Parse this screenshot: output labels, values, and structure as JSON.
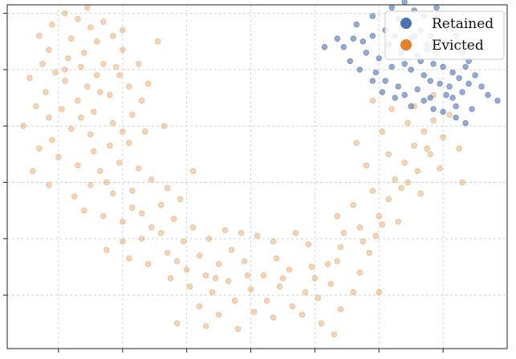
{
  "chart_data": {
    "type": "scatter",
    "title": "",
    "xlabel": "",
    "ylabel": "",
    "xlim": [
      -0.2,
      7.6
    ],
    "ylim": [
      -0.95,
      5.15
    ],
    "x_ticks": [
      0.6,
      1.6,
      2.6,
      3.6,
      4.6,
      5.6,
      6.6
    ],
    "y_ticks": [
      0,
      1,
      2,
      3,
      4,
      5
    ],
    "grid": true,
    "legend_position": "top-right",
    "series": [
      {
        "name": "Retained",
        "color": "#4c72b0",
        "points": [
          [
            6.1,
            4.55
          ],
          [
            6.25,
            4.7
          ],
          [
            6.4,
            4.6
          ],
          [
            6.55,
            4.8
          ],
          [
            6.35,
            4.35
          ],
          [
            6.2,
            4.25
          ],
          [
            6.5,
            4.3
          ],
          [
            6.7,
            4.45
          ],
          [
            6.45,
            4.1
          ],
          [
            6.6,
            4.05
          ],
          [
            6.75,
            3.95
          ],
          [
            6.3,
            3.9
          ],
          [
            6.55,
            3.75
          ],
          [
            6.7,
            3.7
          ],
          [
            6.85,
            3.85
          ],
          [
            6.1,
            4.0
          ],
          [
            5.95,
            4.3
          ],
          [
            5.75,
            4.45
          ],
          [
            5.6,
            4.2
          ],
          [
            5.85,
            4.6
          ],
          [
            6.05,
            4.85
          ],
          [
            6.3,
            4.95
          ],
          [
            6.5,
            5.1
          ],
          [
            6.15,
            5.05
          ],
          [
            5.9,
            4.9
          ],
          [
            5.7,
            4.7
          ],
          [
            5.5,
            4.6
          ],
          [
            5.35,
            4.5
          ],
          [
            5.2,
            4.55
          ],
          [
            5.4,
            4.3
          ],
          [
            5.55,
            3.95
          ],
          [
            5.7,
            3.8
          ],
          [
            5.9,
            3.7
          ],
          [
            6.0,
            3.55
          ],
          [
            6.2,
            3.65
          ],
          [
            6.4,
            3.5
          ],
          [
            6.65,
            3.55
          ],
          [
            6.9,
            3.6
          ],
          [
            7.0,
            3.75
          ],
          [
            7.1,
            3.9
          ],
          [
            7.0,
            4.15
          ],
          [
            6.9,
            4.3
          ],
          [
            6.8,
            4.6
          ],
          [
            6.65,
            4.75
          ],
          [
            6.95,
            4.05
          ],
          [
            7.2,
            3.7
          ],
          [
            7.3,
            3.55
          ],
          [
            6.8,
            3.35
          ],
          [
            6.6,
            3.25
          ],
          [
            6.45,
            3.3
          ],
          [
            6.3,
            3.45
          ],
          [
            6.1,
            3.35
          ],
          [
            5.85,
            3.5
          ],
          [
            5.65,
            3.6
          ],
          [
            5.5,
            3.8
          ],
          [
            5.3,
            4.0
          ],
          [
            5.15,
            4.15
          ],
          [
            5.05,
            4.4
          ],
          [
            4.95,
            4.55
          ],
          [
            4.75,
            4.4
          ],
          [
            5.25,
            4.8
          ],
          [
            5.5,
            4.95
          ],
          [
            5.8,
            5.1
          ],
          [
            6.0,
            5.2
          ],
          [
            6.35,
            4.45
          ],
          [
            6.15,
            4.6
          ],
          [
            6.0,
            4.1
          ],
          [
            5.8,
            4.05
          ],
          [
            6.4,
            3.8
          ],
          [
            6.55,
            4.5
          ],
          [
            6.25,
            4.15
          ],
          [
            6.45,
            4.4
          ],
          [
            6.8,
            3.15
          ],
          [
            7.05,
            3.3
          ],
          [
            6.95,
            3.05
          ],
          [
            7.45,
            3.45
          ],
          [
            7.0,
            4.45
          ],
          [
            6.75,
            3.5
          ]
        ]
      },
      {
        "name": "Evicted",
        "color": "#e0812e",
        "points": [
          [
            0.3,
            4.6
          ],
          [
            0.5,
            4.8
          ],
          [
            0.7,
            5.0
          ],
          [
            0.9,
            4.9
          ],
          [
            1.1,
            4.75
          ],
          [
            1.3,
            4.85
          ],
          [
            1.45,
            4.6
          ],
          [
            1.6,
            4.35
          ],
          [
            1.2,
            4.5
          ],
          [
            0.8,
            4.55
          ],
          [
            0.45,
            4.35
          ],
          [
            0.35,
            4.1
          ],
          [
            0.55,
            3.95
          ],
          [
            0.75,
            4.2
          ],
          [
            1.0,
            4.3
          ],
          [
            1.3,
            4.1
          ],
          [
            1.55,
            3.9
          ],
          [
            1.7,
            3.7
          ],
          [
            1.4,
            3.55
          ],
          [
            1.05,
            3.7
          ],
          [
            0.7,
            3.8
          ],
          [
            0.4,
            3.6
          ],
          [
            0.25,
            3.35
          ],
          [
            0.45,
            3.15
          ],
          [
            0.65,
            3.3
          ],
          [
            0.9,
            3.45
          ],
          [
            1.15,
            3.25
          ],
          [
            1.45,
            3.05
          ],
          [
            1.75,
            3.2
          ],
          [
            1.9,
            3.45
          ],
          [
            1.95,
            2.9
          ],
          [
            1.7,
            2.7
          ],
          [
            1.4,
            2.65
          ],
          [
            1.1,
            2.85
          ],
          [
            0.8,
            2.95
          ],
          [
            0.5,
            2.75
          ],
          [
            0.3,
            2.6
          ],
          [
            0.6,
            2.45
          ],
          [
            0.9,
            2.3
          ],
          [
            1.25,
            2.2
          ],
          [
            1.55,
            2.35
          ],
          [
            1.85,
            2.25
          ],
          [
            2.05,
            2.05
          ],
          [
            1.75,
            1.85
          ],
          [
            1.45,
            1.8
          ],
          [
            1.1,
            1.95
          ],
          [
            0.85,
            1.75
          ],
          [
            1.0,
            1.5
          ],
          [
            1.3,
            1.4
          ],
          [
            1.6,
            1.3
          ],
          [
            1.9,
            1.45
          ],
          [
            2.2,
            1.6
          ],
          [
            2.4,
            1.35
          ],
          [
            2.2,
            1.1
          ],
          [
            1.9,
            1.0
          ],
          [
            1.6,
            0.95
          ],
          [
            1.35,
            0.8
          ],
          [
            1.7,
            0.65
          ],
          [
            2.0,
            0.55
          ],
          [
            2.3,
            0.75
          ],
          [
            2.55,
            0.95
          ],
          [
            2.8,
            0.7
          ],
          [
            2.6,
            0.45
          ],
          [
            2.35,
            0.3
          ],
          [
            2.65,
            0.15
          ],
          [
            2.9,
            0.35
          ],
          [
            3.1,
            0.55
          ],
          [
            3.3,
            0.8
          ],
          [
            3.5,
            0.6
          ],
          [
            3.25,
            0.25
          ],
          [
            3.0,
            0.05
          ],
          [
            2.8,
            -0.2
          ],
          [
            3.1,
            -0.35
          ],
          [
            3.35,
            -0.1
          ],
          [
            3.6,
            0.1
          ],
          [
            3.8,
            0.35
          ],
          [
            4.0,
            0.65
          ],
          [
            4.2,
            0.45
          ],
          [
            4.05,
            0.15
          ],
          [
            3.85,
            -0.1
          ],
          [
            3.65,
            -0.3
          ],
          [
            3.95,
            -0.4
          ],
          [
            4.25,
            -0.2
          ],
          [
            4.45,
            0.05
          ],
          [
            4.6,
            0.3
          ],
          [
            4.8,
            0.55
          ],
          [
            5.0,
            0.85
          ],
          [
            4.85,
            0.2
          ],
          [
            4.65,
            -0.05
          ],
          [
            4.4,
            -0.35
          ],
          [
            4.7,
            -0.5
          ],
          [
            5.0,
            -0.25
          ],
          [
            5.2,
            0.05
          ],
          [
            5.3,
            0.4
          ],
          [
            5.45,
            0.75
          ],
          [
            5.55,
            1.05
          ],
          [
            5.3,
            1.2
          ],
          [
            5.05,
            1.1
          ],
          [
            5.6,
            1.4
          ],
          [
            5.75,
            1.7
          ],
          [
            5.5,
            1.85
          ],
          [
            5.85,
            2.05
          ],
          [
            6.0,
            2.35
          ],
          [
            5.75,
            2.5
          ],
          [
            6.15,
            2.65
          ],
          [
            6.3,
            2.9
          ],
          [
            6.05,
            3.05
          ],
          [
            6.45,
            3.1
          ],
          [
            6.6,
            2.8
          ],
          [
            6.4,
            2.5
          ],
          [
            6.2,
            2.2
          ],
          [
            5.95,
            1.9
          ],
          [
            6.7,
            3.2
          ],
          [
            5.65,
            2.9
          ],
          [
            5.4,
            2.3
          ],
          [
            5.2,
            1.6
          ],
          [
            4.95,
            1.4
          ],
          [
            4.5,
            0.9
          ],
          [
            4.3,
            1.1
          ],
          [
            3.95,
            0.95
          ],
          [
            3.7,
            1.05
          ],
          [
            3.45,
            1.1
          ],
          [
            3.2,
            1.15
          ],
          [
            2.95,
            1.0
          ],
          [
            2.7,
            1.2
          ],
          [
            2.5,
            1.7
          ],
          [
            2.7,
            2.2
          ],
          [
            1.2,
            3.9
          ],
          [
            0.95,
            4.05
          ],
          [
            1.6,
            4.7
          ],
          [
            1.85,
            4.1
          ],
          [
            2.3,
            1.9
          ],
          [
            0.15,
            3.85
          ],
          [
            0.05,
            3.0
          ],
          [
            0.2,
            2.2
          ],
          [
            0.45,
            1.95
          ],
          [
            2.9,
            -0.55
          ],
          [
            3.4,
            -0.6
          ],
          [
            2.45,
            -0.5
          ],
          [
            4.9,
            -0.7
          ],
          [
            5.6,
            0.05
          ],
          [
            5.9,
            1.3
          ],
          [
            6.25,
            1.8
          ],
          [
            6.55,
            2.25
          ],
          [
            6.85,
            2.6
          ],
          [
            6.9,
            2.0
          ],
          [
            5.25,
            2.7
          ],
          [
            5.5,
            3.45
          ],
          [
            5.8,
            3.3
          ],
          [
            6.15,
            3.35
          ],
          [
            6.45,
            3.55
          ],
          [
            2.25,
            3.0
          ],
          [
            2.0,
            3.75
          ],
          [
            2.15,
            4.5
          ],
          [
            1.05,
            5.1
          ],
          [
            0.7,
            4.0
          ],
          [
            1.5,
            4.05
          ],
          [
            1.25,
            3.6
          ],
          [
            0.95,
            3.15
          ],
          [
            1.6,
            2.9
          ],
          [
            1.15,
            2.55
          ],
          [
            1.35,
            2.0
          ],
          [
            1.75,
            1.55
          ],
          [
            2.05,
            1.2
          ],
          [
            2.45,
            0.6
          ],
          [
            3.05,
            0.3
          ],
          [
            3.55,
            0.35
          ],
          [
            4.1,
            0.3
          ],
          [
            4.55,
            0.5
          ],
          [
            4.95,
            0.6
          ],
          [
            5.35,
            0.95
          ],
          [
            5.65,
            1.25
          ],
          [
            6.05,
            2.0
          ],
          [
            6.35,
            2.6
          ]
        ]
      }
    ]
  }
}
